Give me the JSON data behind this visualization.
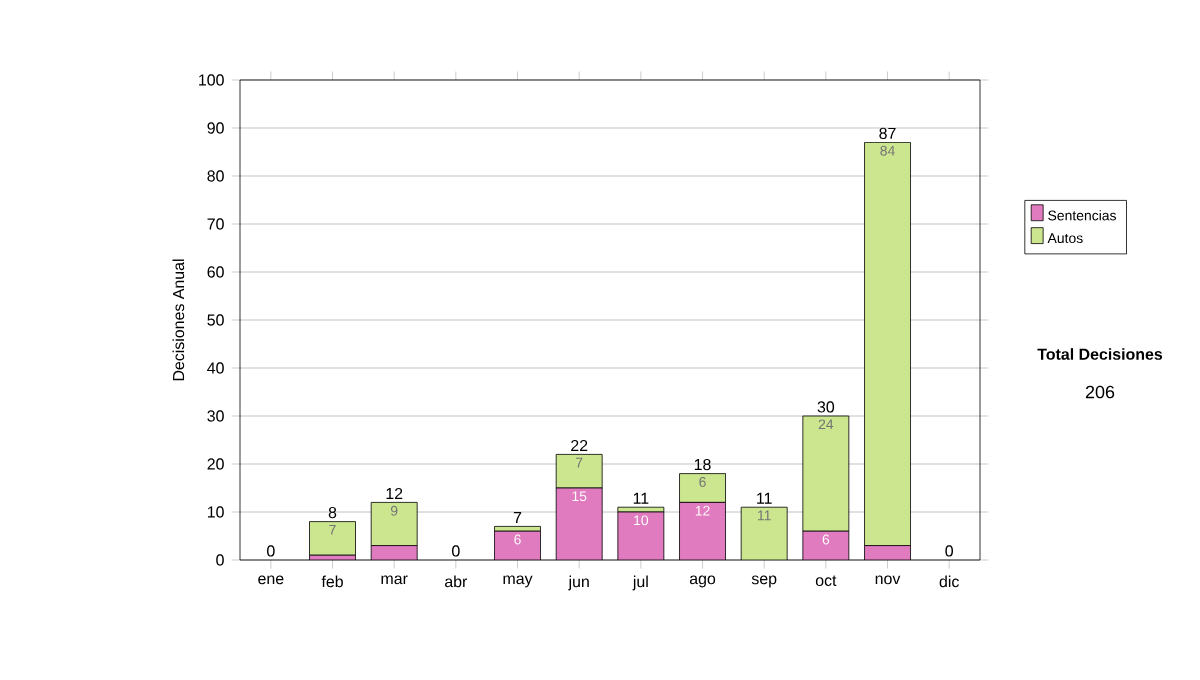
{
  "chart_data": {
    "type": "bar",
    "stacked": true,
    "ylabel": "Decisiones Anual",
    "categories": [
      "ene",
      "feb",
      "mar",
      "abr",
      "may",
      "jun",
      "jul",
      "ago",
      "sep",
      "oct",
      "nov",
      "dic"
    ],
    "series": [
      {
        "name": "Sentencias",
        "color": "#e07bbf",
        "values": [
          0,
          1,
          3,
          0,
          6,
          15,
          10,
          12,
          0,
          6,
          3,
          0
        ],
        "value_labels": [
          null,
          null,
          null,
          null,
          "6",
          "15",
          "10",
          "12",
          null,
          "6",
          null,
          null
        ]
      },
      {
        "name": "Autos",
        "color": "#cce68f",
        "values": [
          0,
          7,
          9,
          0,
          1,
          7,
          1,
          6,
          11,
          24,
          84,
          0
        ],
        "value_labels": [
          null,
          "7",
          "9",
          null,
          null,
          "7",
          null,
          "6",
          "11",
          "24",
          "84",
          null
        ]
      }
    ],
    "totals": [
      "0",
      "8",
      "12",
      "0",
      "7",
      "22",
      "11",
      "18",
      "11",
      "30",
      "87",
      "0"
    ],
    "ylim": [
      0,
      100
    ],
    "yticks": [
      0,
      10,
      20,
      30,
      40,
      50,
      60,
      70,
      80,
      90,
      100
    ],
    "grid": "y",
    "legend": "right",
    "annotations": [
      "Total Decisiones",
      "206"
    ]
  }
}
